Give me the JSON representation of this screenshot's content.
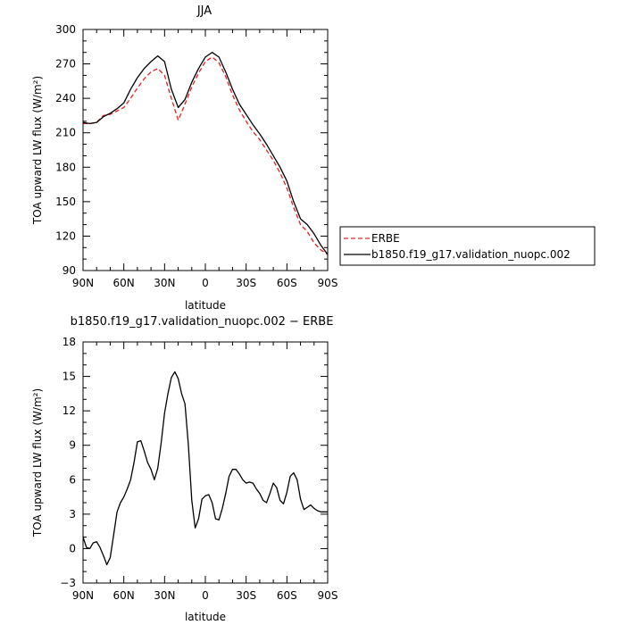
{
  "chart_data": [
    {
      "type": "line",
      "title": "JJA",
      "xlabel": "latitude",
      "ylabel": "TOA upward LW flux (W/m²)",
      "xlim": [
        90,
        -90
      ],
      "ylim": [
        90,
        300
      ],
      "x_ticks": [
        90,
        60,
        30,
        0,
        -30,
        -60,
        -90
      ],
      "x_tick_labels": [
        "90N",
        "60N",
        "30N",
        "0",
        "30S",
        "60S",
        "90S"
      ],
      "y_ticks": [
        90,
        120,
        150,
        180,
        210,
        240,
        270,
        300
      ],
      "legend": {
        "placement": "right"
      },
      "series": [
        {
          "name": "ERBE",
          "color": "#e8201c",
          "dash": "dashed",
          "x": [
            90,
            85,
            80,
            75,
            70,
            65,
            60,
            55,
            50,
            45,
            40,
            35,
            30,
            25,
            20,
            15,
            10,
            5,
            0,
            -5,
            -10,
            -15,
            -20,
            -25,
            -30,
            -35,
            -40,
            -45,
            -50,
            -55,
            -60,
            -65,
            -70,
            -75,
            -80,
            -85,
            -90
          ],
          "values": [
            218,
            218,
            219,
            225,
            226,
            229,
            232,
            240,
            249,
            257,
            263,
            266,
            260,
            240,
            221,
            235,
            250,
            262,
            272,
            276,
            271,
            259,
            243,
            230,
            220,
            211,
            204,
            195,
            186,
            175,
            162,
            145,
            130,
            124,
            114,
            108,
            104
          ]
        },
        {
          "name": "b1850.f19_g17.validation_nuopc.002",
          "color": "#000000",
          "dash": "solid",
          "x": [
            90,
            85,
            80,
            75,
            70,
            65,
            60,
            55,
            50,
            45,
            40,
            35,
            30,
            25,
            20,
            15,
            10,
            5,
            0,
            -5,
            -10,
            -15,
            -20,
            -25,
            -30,
            -35,
            -40,
            -45,
            -50,
            -55,
            -60,
            -65,
            -70,
            -75,
            -80,
            -85,
            -90
          ],
          "values": [
            219,
            218,
            219,
            224,
            227,
            231,
            236,
            248,
            258,
            266,
            272,
            277,
            272,
            248,
            232,
            239,
            254,
            266,
            276,
            280,
            276,
            263,
            248,
            235,
            226,
            217,
            209,
            200,
            190,
            180,
            168,
            150,
            135,
            130,
            122,
            112,
            104
          ]
        }
      ]
    },
    {
      "type": "line",
      "title": "b1850.f19_g17.validation_nuopc.002 − ERBE",
      "xlabel": "latitude",
      "ylabel": "TOA upward LW flux (W/m²)",
      "xlim": [
        90,
        -90
      ],
      "ylim": [
        -3,
        18
      ],
      "x_ticks": [
        90,
        60,
        30,
        0,
        -30,
        -60,
        -90
      ],
      "x_tick_labels": [
        "90N",
        "60N",
        "30N",
        "0",
        "30S",
        "60S",
        "90S"
      ],
      "y_ticks": [
        -3,
        0,
        3,
        6,
        9,
        12,
        15,
        18
      ],
      "series": [
        {
          "color": "#000000",
          "dash": "solid",
          "x": [
            90,
            87.5,
            85,
            82.5,
            80,
            77.5,
            75,
            72.5,
            70,
            67.5,
            65,
            62.5,
            60,
            57.5,
            55,
            52.5,
            50,
            47.5,
            45,
            42.5,
            40,
            37.5,
            35,
            32.5,
            30,
            27.5,
            25,
            22.5,
            20,
            17.5,
            15,
            12.5,
            10,
            7.5,
            5,
            2.5,
            0,
            -2.5,
            -5,
            -7.5,
            -10,
            -12.5,
            -15,
            -17.5,
            -20,
            -22.5,
            -25,
            -27.5,
            -30,
            -32.5,
            -35,
            -37.5,
            -40,
            -42.5,
            -45,
            -47.5,
            -50,
            -52.5,
            -55,
            -57.5,
            -60,
            -62.5,
            -65,
            -67.5,
            -70,
            -72.5,
            -75,
            -77.5,
            -80,
            -82.5,
            -85,
            -87.5,
            -90
          ],
          "values": [
            1.0,
            0.1,
            0.0,
            0.5,
            0.6,
            0.1,
            -0.6,
            -1.4,
            -0.8,
            1.2,
            3.2,
            4.0,
            4.5,
            5.2,
            6.0,
            7.5,
            9.3,
            9.4,
            8.5,
            7.5,
            6.9,
            6.0,
            7.0,
            9.2,
            11.8,
            13.5,
            14.9,
            15.4,
            14.8,
            13.5,
            12.6,
            9.0,
            4.2,
            1.8,
            2.6,
            4.3,
            4.6,
            4.7,
            4.0,
            2.6,
            2.5,
            3.5,
            4.8,
            6.3,
            6.9,
            6.9,
            6.5,
            6.0,
            5.7,
            5.8,
            5.7,
            5.2,
            4.8,
            4.2,
            4.0,
            4.8,
            5.7,
            5.3,
            4.2,
            3.9,
            4.9,
            6.3,
            6.6,
            6.0,
            4.3,
            3.4,
            3.6,
            3.8,
            3.5,
            3.3,
            3.2,
            3.2,
            3.2
          ]
        }
      ]
    }
  ]
}
